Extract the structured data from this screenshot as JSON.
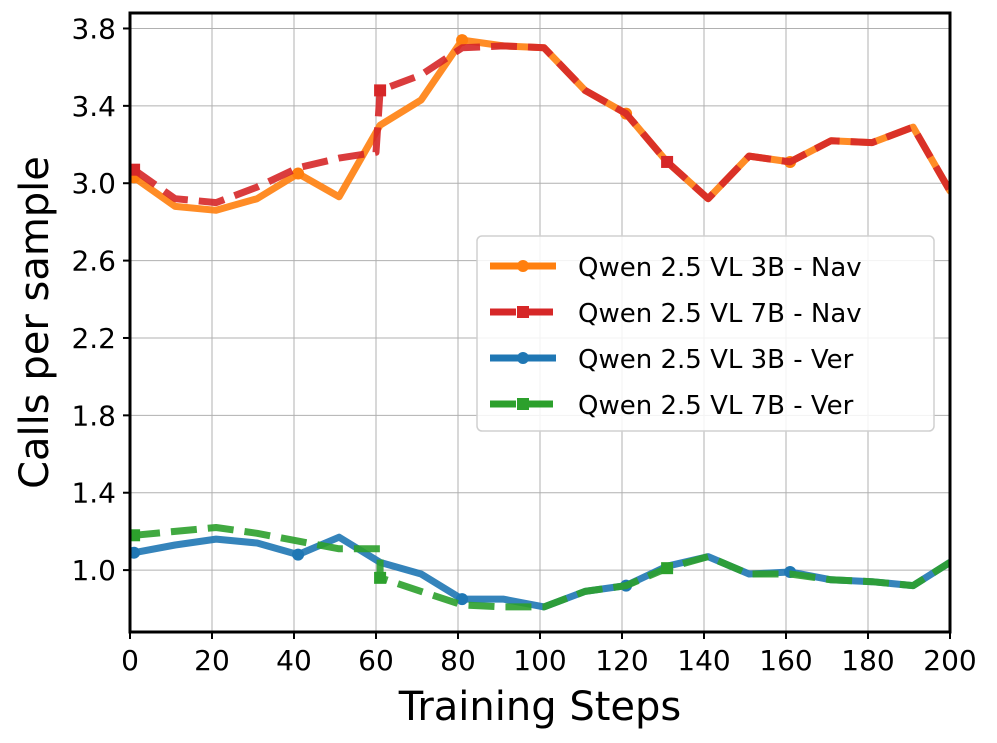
{
  "chart_data": {
    "type": "line",
    "xlabel": "Training Steps",
    "ylabel": "Calls per sample",
    "xlim": [
      0,
      200
    ],
    "ylim": [
      0.68,
      3.88
    ],
    "xticks": [
      0,
      20,
      40,
      60,
      80,
      100,
      120,
      140,
      160,
      180,
      200
    ],
    "xtick_labels": [
      "0",
      "20",
      "40",
      "60",
      "80",
      "100",
      "120",
      "140",
      "160",
      "180",
      "200"
    ],
    "yticks": [
      1.0,
      1.4,
      1.8,
      2.2,
      2.6,
      3.0,
      3.4,
      3.8
    ],
    "ytick_labels": [
      "1.0",
      "1.4",
      "1.8",
      "2.2",
      "2.6",
      "3.0",
      "3.4",
      "3.8"
    ],
    "grid": true,
    "legend_position": "center-right",
    "series": [
      {
        "name": "Qwen 2.5 VL 3B - Nav",
        "color": "#ff7f0e",
        "dash": "solid",
        "marker": "circle",
        "x": [
          1,
          11,
          21,
          31,
          41,
          51,
          61,
          71,
          81,
          91,
          101,
          111,
          121,
          131,
          141,
          151,
          161,
          171,
          181,
          191,
          200
        ],
        "y": [
          3.03,
          2.88,
          2.86,
          2.92,
          3.05,
          2.93,
          3.3,
          3.43,
          3.74,
          3.71,
          3.7,
          3.48,
          3.36,
          3.11,
          2.92,
          3.14,
          3.11,
          3.22,
          3.21,
          3.29,
          2.96
        ],
        "markers_x": [
          1,
          41,
          81,
          121,
          161
        ],
        "markers_y": [
          3.03,
          3.05,
          3.74,
          3.36,
          3.11
        ]
      },
      {
        "name": "Qwen 2.5 VL 7B - Nav",
        "color": "#d62728",
        "dash": "dashed",
        "marker": "square",
        "x": [
          1,
          11,
          21,
          31,
          41,
          51,
          60,
          61,
          71,
          81,
          91,
          101,
          111,
          121,
          131,
          141,
          151,
          161,
          171,
          181,
          191,
          200
        ],
        "y": [
          3.07,
          2.92,
          2.9,
          2.98,
          3.08,
          3.13,
          3.16,
          3.48,
          3.56,
          3.7,
          3.71,
          3.7,
          3.48,
          3.36,
          3.11,
          2.92,
          3.14,
          3.11,
          3.22,
          3.21,
          3.29,
          2.96
        ],
        "markers_x": [
          1,
          61,
          131
        ],
        "markers_y": [
          3.07,
          3.48,
          3.11
        ]
      },
      {
        "name": "Qwen 2.5 VL 3B - Ver",
        "color": "#1f77b4",
        "dash": "solid",
        "marker": "circle",
        "x": [
          1,
          11,
          21,
          31,
          41,
          51,
          61,
          71,
          81,
          91,
          101,
          111,
          121,
          131,
          141,
          151,
          161,
          171,
          181,
          191,
          200
        ],
        "y": [
          1.09,
          1.13,
          1.16,
          1.14,
          1.08,
          1.17,
          1.04,
          0.98,
          0.85,
          0.85,
          0.81,
          0.89,
          0.92,
          1.02,
          1.07,
          0.98,
          0.99,
          0.95,
          0.94,
          0.92,
          1.04
        ],
        "markers_x": [
          1,
          41,
          81,
          121,
          161
        ],
        "markers_y": [
          1.09,
          1.08,
          0.85,
          0.92,
          0.99
        ]
      },
      {
        "name": "Qwen 2.5 VL 7B - Ver",
        "color": "#2ca02c",
        "dash": "dashed",
        "marker": "square",
        "x": [
          1,
          11,
          21,
          31,
          41,
          51,
          61,
          61,
          71,
          81,
          91,
          101,
          111,
          121,
          131,
          141,
          151,
          161,
          171,
          181,
          191,
          200
        ],
        "y": [
          1.18,
          1.2,
          1.22,
          1.19,
          1.15,
          1.11,
          1.11,
          0.96,
          0.89,
          0.82,
          0.81,
          0.81,
          0.89,
          0.92,
          1.01,
          1.07,
          0.98,
          0.98,
          0.95,
          0.94,
          0.92,
          1.04
        ],
        "markers_x": [
          1,
          61,
          131
        ],
        "markers_y": [
          1.18,
          0.96,
          1.01
        ]
      }
    ]
  }
}
